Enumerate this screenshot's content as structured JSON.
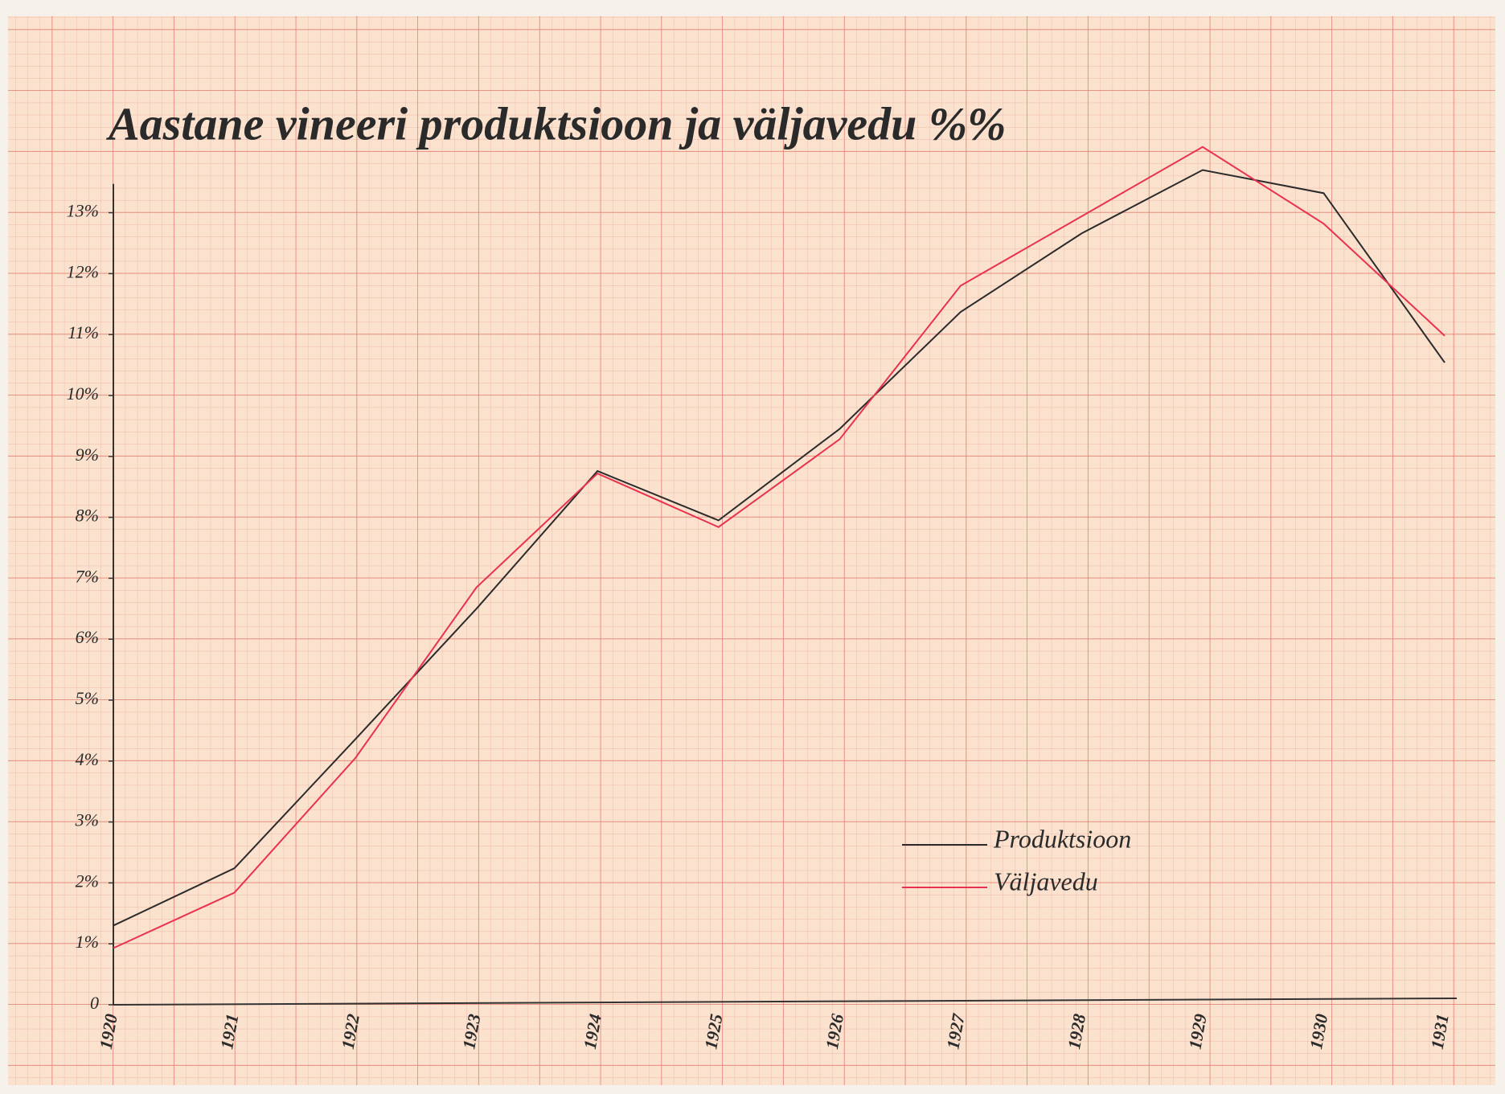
{
  "chart_data": {
    "type": "line",
    "title": "Aastane vineeri produktsioon ja väljavedu %%",
    "categories": [
      "1920",
      "1921",
      "1922",
      "1923",
      "1924",
      "1925",
      "1926",
      "1927",
      "1928",
      "1929",
      "1930",
      "1931"
    ],
    "series": [
      {
        "name": "Produktsioon",
        "color": "#2b2b2b",
        "values": [
          1.3,
          2.24,
          4.36,
          6.5,
          8.76,
          7.95,
          9.45,
          11.37,
          12.66,
          13.7,
          13.32,
          10.54
        ]
      },
      {
        "name": "Väljavedu",
        "color": "#e8324f",
        "values": [
          0.93,
          1.84,
          4.05,
          6.85,
          8.72,
          7.84,
          9.28,
          11.8,
          12.94,
          14.08,
          12.82,
          10.98
        ]
      }
    ],
    "ylim": [
      0,
      14
    ],
    "yticks": [
      0,
      {
        "value": 1,
        "label": "1%"
      },
      {
        "value": 2,
        "label": "2%"
      },
      {
        "value": 3,
        "label": "3%"
      },
      {
        "value": 4,
        "label": "4%"
      },
      {
        "value": 5,
        "label": "5%"
      },
      {
        "value": 6,
        "label": "6%"
      },
      {
        "value": 7,
        "label": "7%"
      },
      {
        "value": 8,
        "label": "8%"
      },
      {
        "value": 9,
        "label": "9%"
      },
      {
        "value": 10,
        "label": "10%"
      },
      {
        "value": 11,
        "label": "11%"
      },
      {
        "value": 12,
        "label": "12%"
      },
      {
        "value": 13,
        "label": "13%"
      }
    ],
    "legend": "lower right"
  }
}
